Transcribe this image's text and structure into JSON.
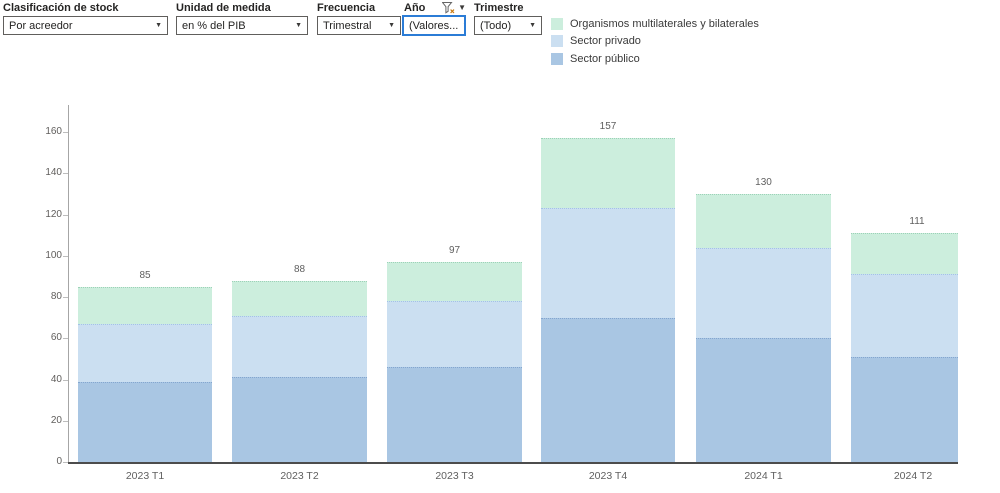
{
  "filters": [
    {
      "label": "Clasificación de stock",
      "value": "Por acreedor"
    },
    {
      "label": "Unidad de medida",
      "value": "en % del PIB"
    },
    {
      "label": "Frecuencia",
      "value": "Trimestral"
    },
    {
      "label": "Año",
      "value": "(Valores...",
      "filtered": true
    },
    {
      "label": "Trimestre",
      "value": "(Todo)"
    }
  ],
  "icons": {
    "dropdown_caret": "▼",
    "header_caret": "▼"
  },
  "legend": [
    {
      "label": "Organismos multilaterales y bilaterales",
      "color": "#cceedd"
    },
    {
      "label": "Sector privado",
      "color": "#cbdff1"
    },
    {
      "label": "Sector público",
      "color": "#a9c6e3"
    }
  ],
  "chart_data": {
    "type": "bar",
    "stacked": true,
    "categories": [
      "2023 T1",
      "2023 T2",
      "2023 T3",
      "2023 T4",
      "2024 T1",
      "2024 T2"
    ],
    "series": [
      {
        "name": "Sector público",
        "color": "#a9c6e3",
        "values": [
          39,
          41,
          46,
          70,
          60,
          51
        ]
      },
      {
        "name": "Sector privado",
        "color": "#cbdff1",
        "values": [
          28,
          30,
          32,
          53,
          44,
          40
        ]
      },
      {
        "name": "Organismos multilaterales y bilaterales",
        "color": "#cceedd",
        "values": [
          18,
          17,
          19,
          34,
          26,
          20
        ]
      }
    ],
    "totals": [
      85,
      88,
      97,
      157,
      130,
      111
    ],
    "title": "",
    "xlabel": "",
    "ylabel": "",
    "ylim": [
      0,
      176
    ],
    "yticks": [
      0,
      20,
      40,
      60,
      80,
      100,
      120,
      140,
      160
    ],
    "grid": false,
    "legend_position": "top-right"
  }
}
